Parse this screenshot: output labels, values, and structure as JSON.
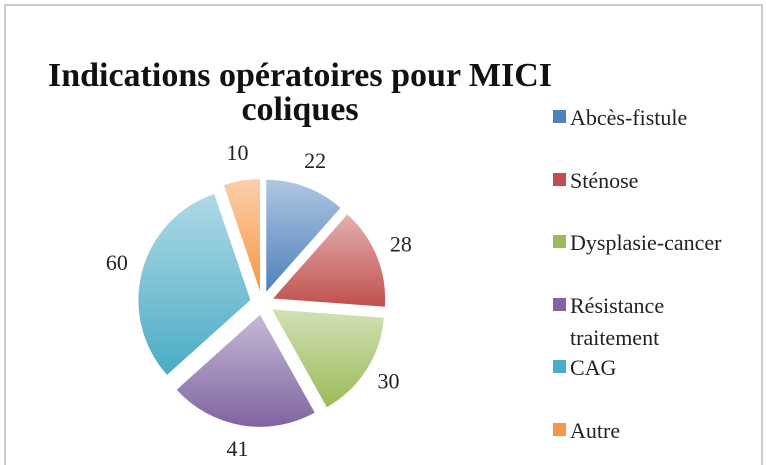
{
  "chart_data": {
    "type": "pie",
    "title": "Indications opératoires pour MICI coliques",
    "categories": [
      "Abcès-fistule",
      "Sténose",
      "Dysplasie-cancer",
      "Résistance traitement",
      "CAG",
      "Autre"
    ],
    "values": [
      22,
      28,
      30,
      41,
      60,
      10
    ],
    "colors": [
      "#4f81bd",
      "#c0504d",
      "#9bbb59",
      "#8064a2",
      "#4bacc6",
      "#f79646"
    ],
    "legend": "right"
  }
}
